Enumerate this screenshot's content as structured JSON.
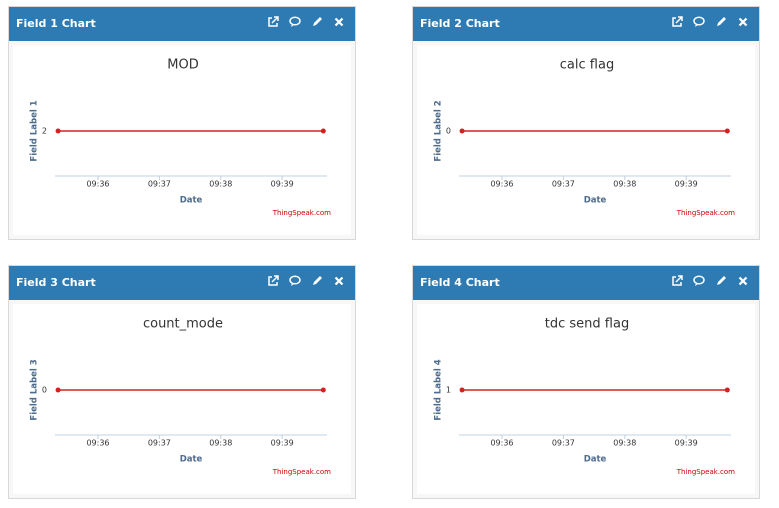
{
  "chart_data": [
    {
      "type": "line",
      "header": "Field 1 Chart",
      "title": "MOD",
      "y_label": "Field Label 1",
      "x_label": "Date",
      "credit": "ThingSpeak.com",
      "x": [
        575.35,
        579.67
      ],
      "values": [
        2,
        2
      ],
      "color": "#d62020",
      "xlim": [
        575.3,
        579.73
      ],
      "xticks": [
        {
          "value": 576,
          "label": "09:36"
        },
        {
          "value": 577,
          "label": "09:37"
        },
        {
          "value": 578,
          "label": "09:38"
        },
        {
          "value": 579,
          "label": "09:39"
        }
      ],
      "ylim": [
        1,
        3
      ],
      "yticks": [
        2
      ]
    },
    {
      "type": "line",
      "header": "Field 2 Chart",
      "title": "calc flag",
      "y_label": "Field Label 2",
      "x_label": "Date",
      "credit": "ThingSpeak.com",
      "x": [
        575.35,
        579.67
      ],
      "values": [
        0,
        0
      ],
      "color": "#d62020",
      "xlim": [
        575.3,
        579.73
      ],
      "xticks": [
        {
          "value": 576,
          "label": "09:36"
        },
        {
          "value": 577,
          "label": "09:37"
        },
        {
          "value": 578,
          "label": "09:38"
        },
        {
          "value": 579,
          "label": "09:39"
        }
      ],
      "ylim": [
        -1,
        1
      ],
      "yticks": [
        0
      ]
    },
    {
      "type": "line",
      "header": "Field 3 Chart",
      "title": "count_mode",
      "y_label": "Field Label 3",
      "x_label": "Date",
      "credit": "ThingSpeak.com",
      "x": [
        575.35,
        579.67
      ],
      "values": [
        0,
        0
      ],
      "color": "#d62020",
      "xlim": [
        575.3,
        579.73
      ],
      "xticks": [
        {
          "value": 576,
          "label": "09:36"
        },
        {
          "value": 577,
          "label": "09:37"
        },
        {
          "value": 578,
          "label": "09:38"
        },
        {
          "value": 579,
          "label": "09:39"
        }
      ],
      "ylim": [
        -1,
        1
      ],
      "yticks": [
        0
      ]
    },
    {
      "type": "line",
      "header": "Field 4 Chart",
      "title": "tdc send flag",
      "y_label": "Field Label 4",
      "x_label": "Date",
      "credit": "ThingSpeak.com",
      "x": [
        575.35,
        579.67
      ],
      "values": [
        1,
        1
      ],
      "color": "#d62020",
      "xlim": [
        575.3,
        579.73
      ],
      "xticks": [
        {
          "value": 576,
          "label": "09:36"
        },
        {
          "value": 577,
          "label": "09:37"
        },
        {
          "value": 578,
          "label": "09:38"
        },
        {
          "value": 579,
          "label": "09:39"
        }
      ],
      "ylim": [
        0,
        2
      ],
      "yticks": [
        1
      ]
    }
  ]
}
